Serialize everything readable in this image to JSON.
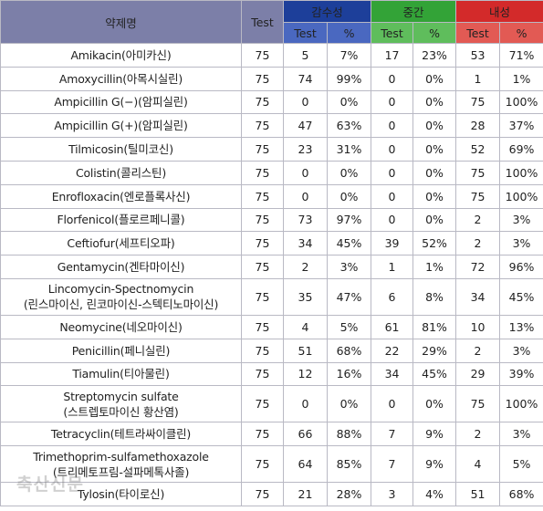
{
  "header": {
    "drug": "약제명",
    "test": "Test",
    "susceptible": "감수성",
    "intermediate": "중간",
    "resistant": "내성",
    "sub_test": "Test",
    "sub_pct": "%"
  },
  "rows": [
    {
      "name": "Amikacin(아미카신)",
      "test": "75",
      "s": "5",
      "sp": "7%",
      "i": "17",
      "ip": "23%",
      "r": "53",
      "rp": "71%"
    },
    {
      "name": "Amoxycillin(아목시실린)",
      "test": "75",
      "s": "74",
      "sp": "99%",
      "i": "0",
      "ip": "0%",
      "r": "1",
      "rp": "1%"
    },
    {
      "name": "Ampicillin G(−)(암피실린)",
      "test": "75",
      "s": "0",
      "sp": "0%",
      "i": "0",
      "ip": "0%",
      "r": "75",
      "rp": "100%"
    },
    {
      "name": "Ampicillin G(+)(암피실린)",
      "test": "75",
      "s": "47",
      "sp": "63%",
      "i": "0",
      "ip": "0%",
      "r": "28",
      "rp": "37%"
    },
    {
      "name": "Tilmicosin(틸미코신)",
      "test": "75",
      "s": "23",
      "sp": "31%",
      "i": "0",
      "ip": "0%",
      "r": "52",
      "rp": "69%"
    },
    {
      "name": "Colistin(콜리스틴)",
      "test": "75",
      "s": "0",
      "sp": "0%",
      "i": "0",
      "ip": "0%",
      "r": "75",
      "rp": "100%"
    },
    {
      "name": "Enrofloxacin(엔로플록사신)",
      "test": "75",
      "s": "0",
      "sp": "0%",
      "i": "0",
      "ip": "0%",
      "r": "75",
      "rp": "100%"
    },
    {
      "name": "Florfenicol(플로르페니콜)",
      "test": "75",
      "s": "73",
      "sp": "97%",
      "i": "0",
      "ip": "0%",
      "r": "2",
      "rp": "3%"
    },
    {
      "name": "Ceftiofur(세프티오파)",
      "test": "75",
      "s": "34",
      "sp": "45%",
      "i": "39",
      "ip": "52%",
      "r": "2",
      "rp": "3%"
    },
    {
      "name": "Gentamycin(겐타마이신)",
      "test": "75",
      "s": "2",
      "sp": "3%",
      "i": "1",
      "ip": "1%",
      "r": "72",
      "rp": "96%"
    },
    {
      "name": "Lincomycin-Spectnomycin",
      "name2": "(린스마이신, 린코마이신-스텍티노마이신)",
      "test": "75",
      "s": "35",
      "sp": "47%",
      "i": "6",
      "ip": "8%",
      "r": "34",
      "rp": "45%"
    },
    {
      "name": "Neomycine(네오마이신)",
      "test": "75",
      "s": "4",
      "sp": "5%",
      "i": "61",
      "ip": "81%",
      "r": "10",
      "rp": "13%"
    },
    {
      "name": "Penicillin(페니실린)",
      "test": "75",
      "s": "51",
      "sp": "68%",
      "i": "22",
      "ip": "29%",
      "r": "2",
      "rp": "3%"
    },
    {
      "name": "Tiamulin(티아물린)",
      "test": "75",
      "s": "12",
      "sp": "16%",
      "i": "34",
      "ip": "45%",
      "r": "29",
      "rp": "39%"
    },
    {
      "name": "Streptomycin sulfate",
      "name2": "(스트렙토마이신 황산염)",
      "test": "75",
      "s": "0",
      "sp": "0%",
      "i": "0",
      "ip": "0%",
      "r": "75",
      "rp": "100%"
    },
    {
      "name": "Tetracyclin(테트라싸이클린)",
      "test": "75",
      "s": "66",
      "sp": "88%",
      "i": "7",
      "ip": "9%",
      "r": "2",
      "rp": "3%"
    },
    {
      "name": "Trimethoprim-sulfamethoxazole",
      "name2": "(트리메토프림-설파메톡사졸)",
      "test": "75",
      "s": "64",
      "sp": "85%",
      "i": "7",
      "ip": "9%",
      "r": "4",
      "rp": "5%"
    },
    {
      "name": "Tylosin(타이로신)",
      "test": "75",
      "s": "21",
      "sp": "28%",
      "i": "3",
      "ip": "4%",
      "r": "51",
      "rp": "68%"
    }
  ],
  "watermark": "축산신문",
  "colors": {
    "susceptible": "#1d3f9a",
    "intermediate": "#33a337",
    "resistant": "#d32a2a",
    "header": "#7c7fa8"
  }
}
